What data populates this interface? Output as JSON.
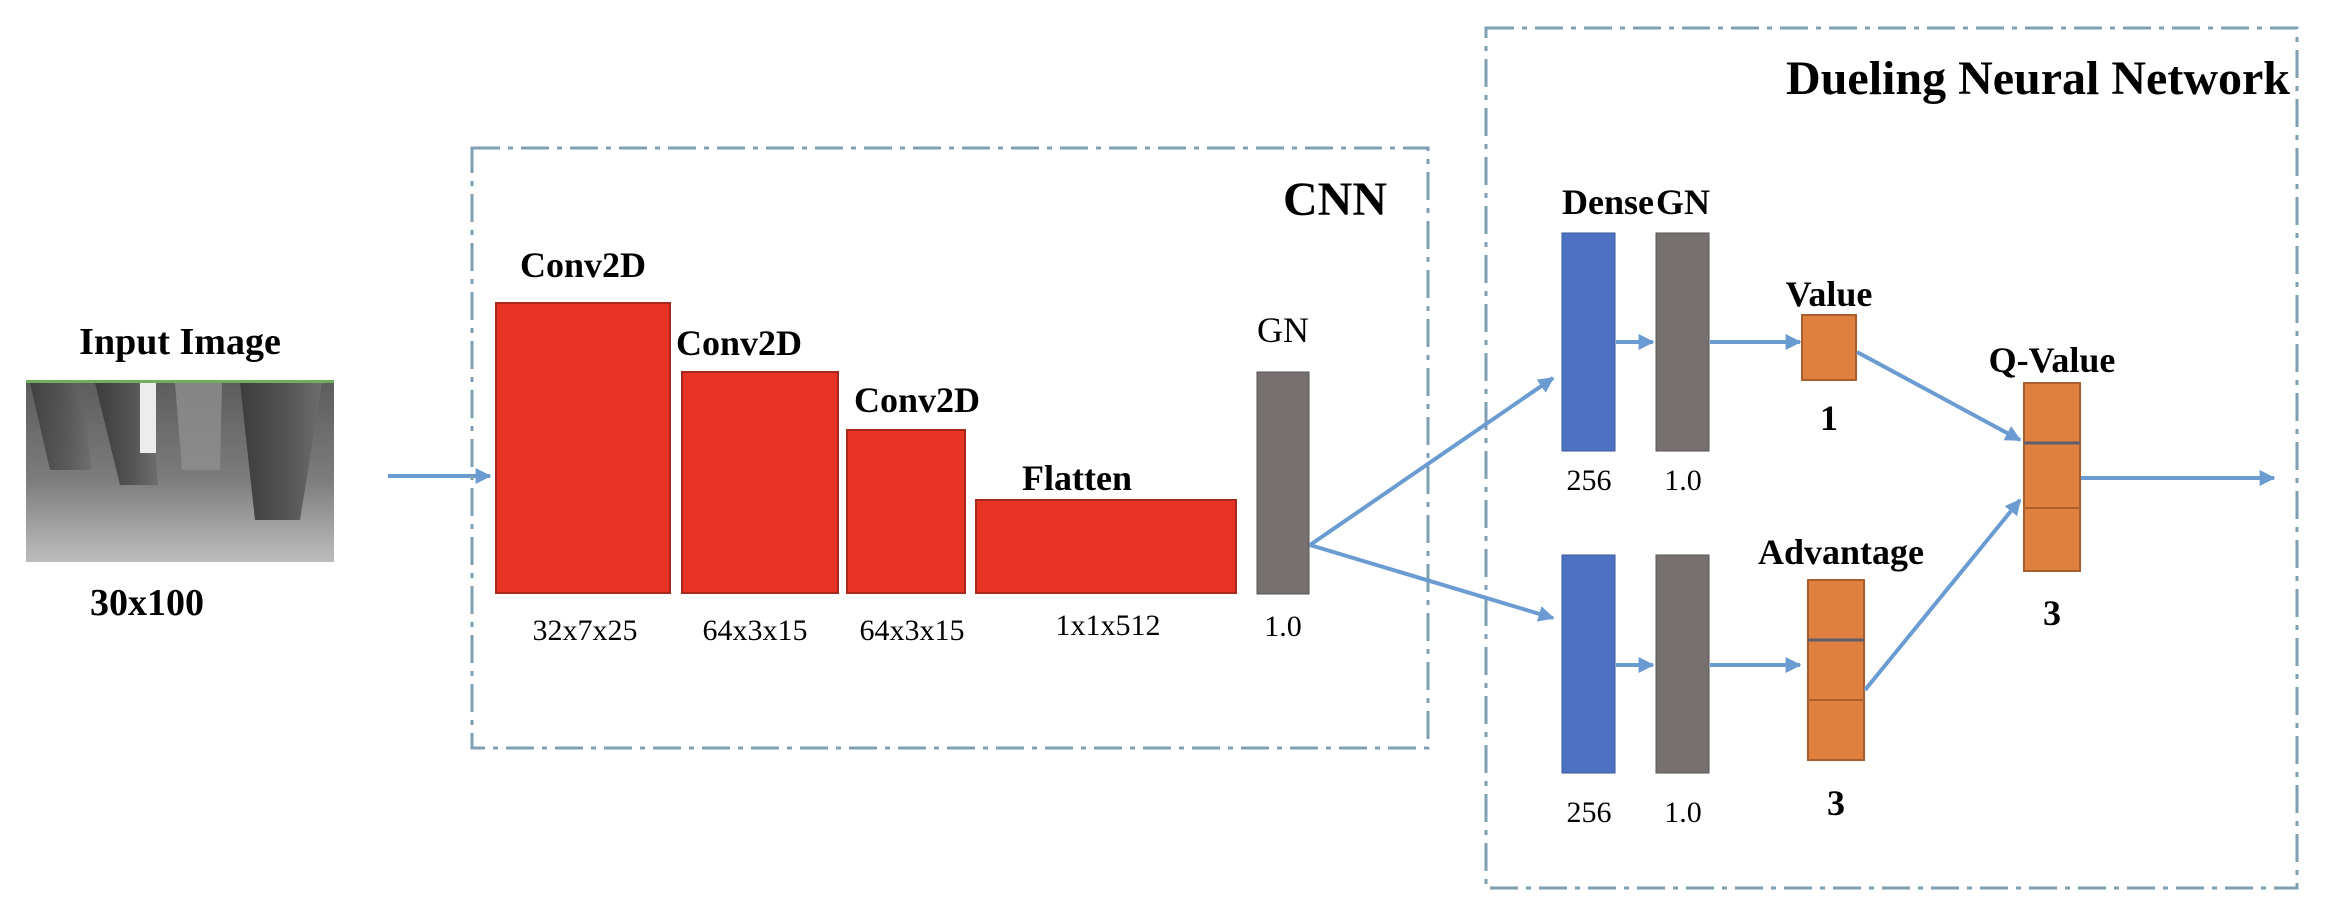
{
  "input": {
    "title": "Input Image",
    "size": "30x100"
  },
  "cnn": {
    "title": "CNN",
    "layers": [
      {
        "name": "Conv2D",
        "shape": "32x7x25"
      },
      {
        "name": "Conv2D",
        "shape": "64x3x15"
      },
      {
        "name": "Conv2D",
        "shape": "64x3x15"
      },
      {
        "name": "Flatten",
        "shape": "1x1x512"
      }
    ],
    "gn": {
      "name": "GN",
      "value": "1.0"
    }
  },
  "dueling": {
    "title": "Dueling Neural Network",
    "dense_label": "Dense",
    "gn_label": "GN",
    "top_dense_units": "256",
    "top_gn_value": "1.0",
    "bottom_dense_units": "256",
    "bottom_gn_value": "1.0",
    "value": {
      "name": "Value",
      "units": "1"
    },
    "advantage": {
      "name": "Advantage",
      "units": "3"
    },
    "q_value": {
      "name": "Q-Value",
      "units": "3"
    }
  },
  "colors": {
    "conv": "#e63323",
    "dense": "#4d72c2",
    "gn": "#76716f",
    "output": "#e0803e",
    "arrow": "#6a9bd1",
    "dashed_border": "#7f9fb3"
  }
}
